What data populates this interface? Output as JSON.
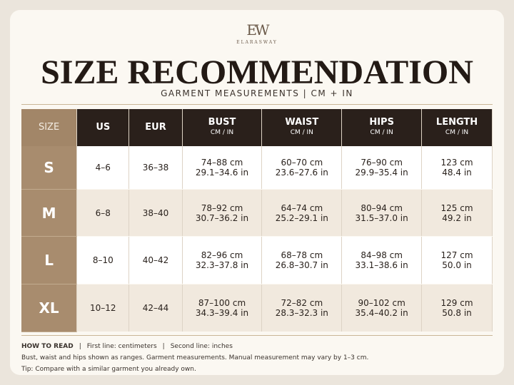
{
  "header": {
    "monogram": "EW",
    "brand": "ELARASWAY",
    "title": "SIZE RECOMMENDATION",
    "subtitle": "GARMENT MEASUREMENTS | CM + IN"
  },
  "table": {
    "columns": [
      {
        "label": "SIZE"
      },
      {
        "label": "US"
      },
      {
        "label": "EUR"
      },
      {
        "label": "BUST",
        "unit": "CM / IN"
      },
      {
        "label": "WAIST",
        "unit": "CM / IN"
      },
      {
        "label": "HIPS",
        "unit": "CM / IN"
      },
      {
        "label": "LENGTH",
        "unit": "CM / IN"
      }
    ],
    "rows": [
      [
        "S",
        "4–6",
        "36–38",
        [
          "74–88 cm",
          "29.1–34.6 in"
        ],
        [
          "60–70 cm",
          "23.6–27.6 in"
        ],
        [
          "76–90 cm",
          "29.9–35.4 in"
        ],
        [
          "123 cm",
          "48.4 in"
        ]
      ],
      [
        "M",
        "6–8",
        "38–40",
        [
          "78–92 cm",
          "30.7–36.2 in"
        ],
        [
          "64–74 cm",
          "25.2–29.1 in"
        ],
        [
          "80–94 cm",
          "31.5–37.0 in"
        ],
        [
          "125 cm",
          "49.2 in"
        ]
      ],
      [
        "L",
        "8–10",
        "40–42",
        [
          "82–96 cm",
          "32.3–37.8 in"
        ],
        [
          "68–78 cm",
          "26.8–30.7 in"
        ],
        [
          "84–98 cm",
          "33.1–38.6 in"
        ],
        [
          "127 cm",
          "50.0 in"
        ]
      ],
      [
        "XL",
        "10–12",
        "42–44",
        [
          "87–100 cm",
          "34.3–39.4 in"
        ],
        [
          "72–82 cm",
          "28.3–32.3 in"
        ],
        [
          "90–102 cm",
          "35.4–40.2 in"
        ],
        [
          "129 cm",
          "50.8 in"
        ]
      ]
    ]
  },
  "footer": {
    "how_to_read": "HOW TO READ",
    "separator": "|",
    "items": [
      "First line: centimeters",
      "Second line: inches"
    ],
    "notes": [
      "Bust, waist and hips shown as ranges. Garment measurements. Manual measurement may vary by 1–3 cm.",
      "Tip: Compare with a similar garment you already own."
    ]
  }
}
